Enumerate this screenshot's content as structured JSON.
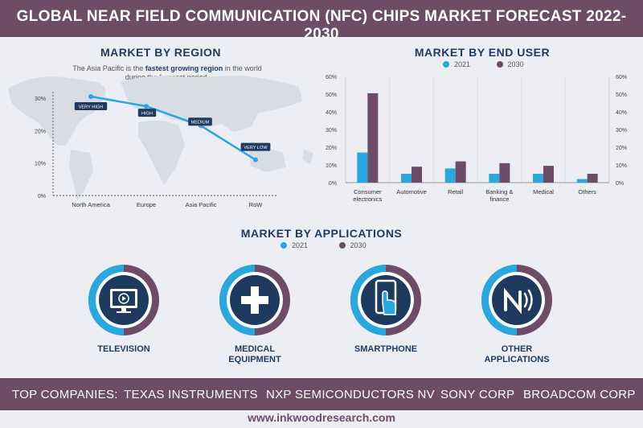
{
  "header": {
    "title": "GLOBAL NEAR FIELD COMMUNICATION (NFC) CHIPS MARKET FORECAST 2022-2030"
  },
  "colors": {
    "header_bg": "#6d4c68",
    "series_2021": "#29a8e0",
    "series_2030": "#6d4c68",
    "navy": "#1f3a5f"
  },
  "region": {
    "title": "MARKET BY REGION",
    "desc_pre": "The Asia Pacific is the ",
    "desc_bold": "fastest growing region",
    "desc_post": " in the world during the forecast period."
  },
  "end_user": {
    "title": "MARKET BY END USER"
  },
  "applications": {
    "title": "MARKET BY APPLICATIONS",
    "items": [
      {
        "label_1": "TELEVISION",
        "label_2": "",
        "icon": "television-icon"
      },
      {
        "label_1": "MEDICAL",
        "label_2": "EQUIPMENT",
        "icon": "medical-cross-icon"
      },
      {
        "label_1": "SMARTPHONE",
        "label_2": "",
        "icon": "smartphone-icon"
      },
      {
        "label_1": "OTHER",
        "label_2": "APPLICATIONS",
        "icon": "nfc-icon"
      }
    ]
  },
  "legend": {
    "l2021": "2021",
    "l2030": "2030"
  },
  "footer": {
    "label": "TOP COMPANIES:",
    "companies": [
      "TEXAS INSTRUMENTS",
      "NXP SEMICONDUCTORS NV",
      "SONY CORP",
      "BROADCOM CORP"
    ],
    "url": "www.inkwoodresearch.com"
  },
  "chart_data": [
    {
      "type": "line",
      "title": "MARKET BY REGION",
      "categories": [
        "North America",
        "Europe",
        "Asia Pacific",
        "RoW"
      ],
      "values": [
        30.5,
        27.5,
        21.5,
        11
      ],
      "point_labels": [
        "VERY HIGH",
        "HIGH",
        "MEDIUM",
        "VERY LOW"
      ],
      "yticks": [
        "0%",
        "10%",
        "20%",
        "30%"
      ],
      "ylim": [
        0,
        30
      ]
    },
    {
      "type": "bar",
      "title": "MARKET BY END USER",
      "categories": [
        [
          "Consumer",
          "electronics"
        ],
        [
          "Automotive"
        ],
        [
          "Retail"
        ],
        [
          "Banking &",
          "finance"
        ],
        [
          "Medical"
        ],
        [
          "Others"
        ]
      ],
      "series": [
        {
          "name": "2021",
          "values": [
            17,
            5,
            8,
            5,
            5,
            2
          ]
        },
        {
          "name": "2030",
          "values": [
            50.5,
            9,
            12,
            11,
            9.5,
            5
          ]
        }
      ],
      "yticks": [
        "0%",
        "10%",
        "20%",
        "30%",
        "40%",
        "50%",
        "60%"
      ],
      "ylim": [
        0,
        60
      ]
    }
  ]
}
